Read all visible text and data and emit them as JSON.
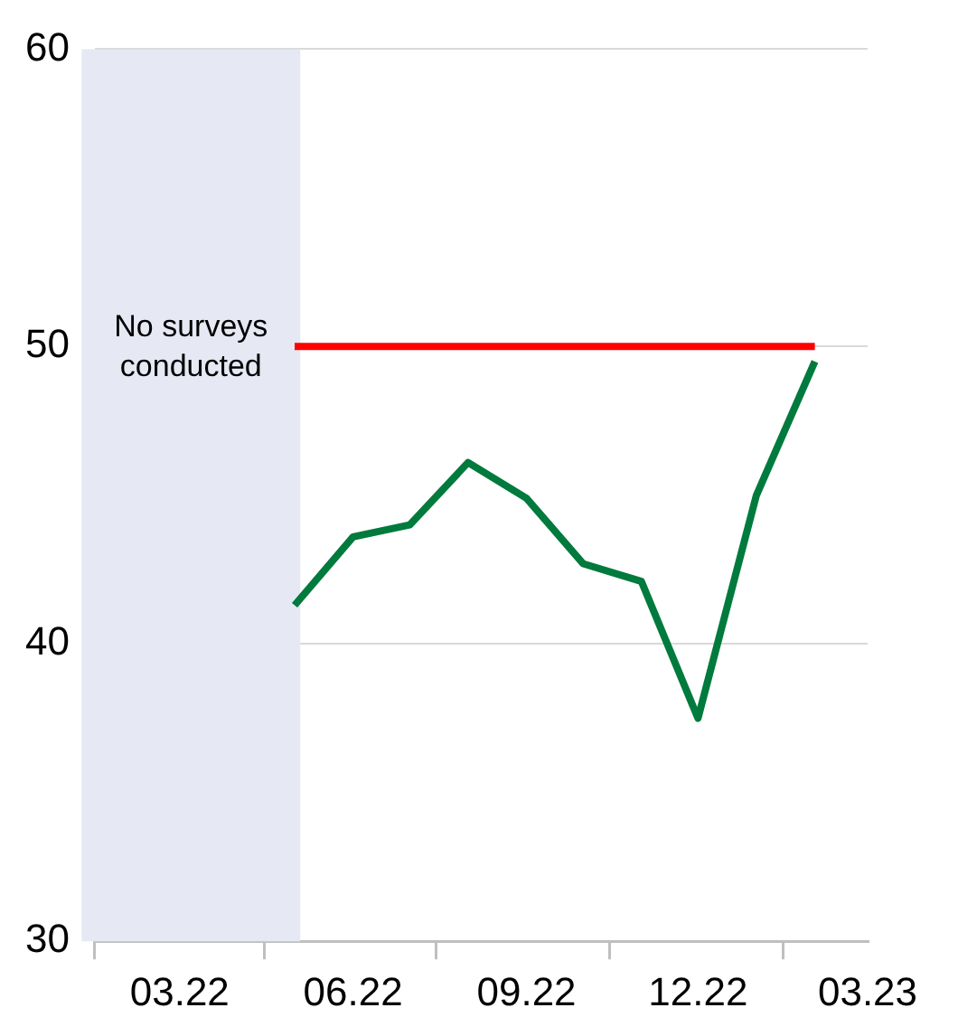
{
  "chart_data": {
    "type": "line",
    "x": [
      "2022-05",
      "2022-06",
      "2022-07",
      "2022-08",
      "2022-09",
      "2022-10",
      "2022-11",
      "2022-12",
      "2023-01",
      "2023-02"
    ],
    "series": [
      {
        "color": "#007a3d",
        "values": [
          41.3,
          43.6,
          44.0,
          46.1,
          44.9,
          42.7,
          42.1,
          37.5,
          45.0,
          49.5
        ]
      },
      {
        "color": "#ff0000",
        "x": [
          "2022-05",
          "2023-02"
        ],
        "values": [
          50,
          50
        ]
      }
    ],
    "xlim": [
      "2022-01-15",
      "2023-03"
    ],
    "xticks": [
      {
        "value": "2022-01-15",
        "label": null
      },
      {
        "value": "2022-03",
        "label": "03.22"
      },
      {
        "value": "2022-04-15",
        "label": null
      },
      {
        "value": "2022-06",
        "label": "06.22"
      },
      {
        "value": "2022-07-15",
        "label": null
      },
      {
        "value": "2022-09",
        "label": "09.22"
      },
      {
        "value": "2022-10-15",
        "label": null
      },
      {
        "value": "2022-12",
        "label": "12.22"
      },
      {
        "value": "2023-01-15",
        "label": null
      },
      {
        "value": "2023-03",
        "label": "03.23"
      }
    ],
    "ylim": [
      30,
      60
    ],
    "yticks": [
      30,
      40,
      50,
      60
    ],
    "grid": "y",
    "legend": false,
    "marker": "none",
    "line_style": "solid",
    "bands": [
      {
        "axis": "x",
        "from": "2022-01-08",
        "to": "2022-05-04",
        "label": "No surveys conducted",
        "color": "#e6e8f4"
      }
    ]
  }
}
